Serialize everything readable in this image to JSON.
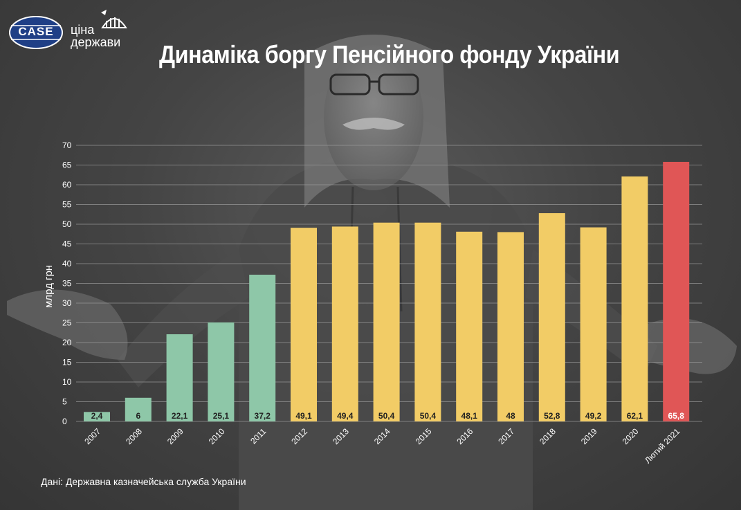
{
  "header": {
    "title": "Динаміка боргу Пенсійного фонду України",
    "logo_case": "CASE",
    "logo_cina_line1": "ціна",
    "logo_cina_line2": "держави"
  },
  "footer": {
    "source": "Дані: Державна казначейська служба України"
  },
  "colors": {
    "green": "#8ec7a8",
    "yellow": "#f2cc66",
    "red": "#e05656",
    "grid": "#9a9a9a",
    "text": "#ffffff"
  },
  "chart_data": {
    "type": "bar",
    "ylabel": "млрд грн",
    "xlabel": "",
    "ylim": [
      0,
      70
    ],
    "yticks": [
      0,
      5,
      10,
      15,
      20,
      25,
      30,
      35,
      40,
      45,
      50,
      55,
      60,
      65,
      70
    ],
    "grid": true,
    "categories": [
      "2007",
      "2008",
      "2009",
      "2010",
      "2011",
      "2012",
      "2013",
      "2014",
      "2015",
      "2016",
      "2017",
      "2018",
      "2019",
      "2020",
      "Лютий 2021"
    ],
    "values": [
      2.4,
      6,
      22.1,
      25.1,
      37.2,
      49.1,
      49.4,
      50.4,
      50.4,
      48.1,
      48,
      52.8,
      49.2,
      62.1,
      65.8
    ],
    "value_labels": [
      "2,4",
      "6",
      "22,1",
      "25,1",
      "37,2",
      "49,1",
      "49,4",
      "50,4",
      "50,4",
      "48,1",
      "48",
      "52,8",
      "49,2",
      "62,1",
      "65,8"
    ],
    "bar_colors": [
      "green",
      "green",
      "green",
      "green",
      "green",
      "yellow",
      "yellow",
      "yellow",
      "yellow",
      "yellow",
      "yellow",
      "yellow",
      "yellow",
      "yellow",
      "red"
    ]
  }
}
